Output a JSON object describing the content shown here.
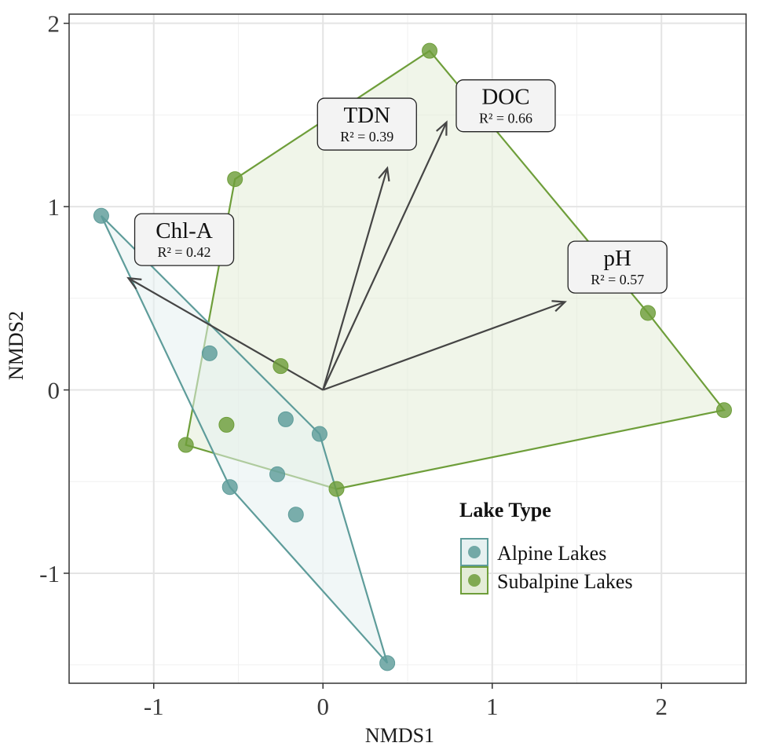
{
  "chart_data": {
    "type": "scatter",
    "xlabel": "NMDS1",
    "ylabel": "NMDS2",
    "xlim": [
      -1.5,
      2.5
    ],
    "ylim": [
      -1.6,
      2.05
    ],
    "x_ticks": [
      -1,
      0,
      1,
      2
    ],
    "x_tick_labels": [
      "-1",
      "0",
      "1",
      "2"
    ],
    "y_ticks": [
      -1,
      0,
      1,
      2
    ],
    "y_tick_labels": [
      "-1",
      "0",
      "1",
      "2"
    ],
    "grid": true,
    "legend": {
      "title": "Lake Type",
      "position": "bottom-right"
    },
    "series": [
      {
        "name": "Alpine Lakes",
        "color": "#5e9c9a",
        "fill": "#e6f1f1",
        "points": [
          {
            "x": -1.31,
            "y": 0.95
          },
          {
            "x": -0.67,
            "y": 0.2
          },
          {
            "x": -0.22,
            "y": -0.16
          },
          {
            "x": -0.02,
            "y": -0.24
          },
          {
            "x": -0.27,
            "y": -0.46
          },
          {
            "x": -0.55,
            "y": -0.53
          },
          {
            "x": -0.16,
            "y": -0.68
          },
          {
            "x": 0.38,
            "y": -1.49
          }
        ],
        "hull": [
          {
            "x": -1.31,
            "y": 0.95
          },
          {
            "x": -0.02,
            "y": -0.24
          },
          {
            "x": 0.38,
            "y": -1.49
          },
          {
            "x": -0.55,
            "y": -0.53
          }
        ]
      },
      {
        "name": "Subalpine Lakes",
        "color": "#6e9e3a",
        "fill": "#e4ecd7",
        "points": [
          {
            "x": 0.63,
            "y": 1.85
          },
          {
            "x": -0.52,
            "y": 1.15
          },
          {
            "x": -0.25,
            "y": 0.13
          },
          {
            "x": -0.57,
            "y": -0.19
          },
          {
            "x": -0.81,
            "y": -0.3
          },
          {
            "x": 0.08,
            "y": -0.54
          },
          {
            "x": 1.92,
            "y": 0.42
          },
          {
            "x": 2.37,
            "y": -0.11
          }
        ],
        "hull": [
          {
            "x": 0.63,
            "y": 1.85
          },
          {
            "x": 1.92,
            "y": 0.42
          },
          {
            "x": 2.37,
            "y": -0.11
          },
          {
            "x": 0.08,
            "y": -0.54
          },
          {
            "x": -0.81,
            "y": -0.3
          },
          {
            "x": -0.52,
            "y": 1.15
          }
        ]
      }
    ],
    "vectors": [
      {
        "name": "Chl-A",
        "r2": "R² = 0.42",
        "x": -1.15,
        "y": 0.61,
        "label_x": -0.82,
        "label_y": 0.82
      },
      {
        "name": "TDN",
        "r2": "R² = 0.39",
        "x": 0.38,
        "y": 1.21,
        "label_x": 0.26,
        "label_y": 1.45
      },
      {
        "name": "DOC",
        "r2": "R² = 0.66",
        "x": 0.73,
        "y": 1.46,
        "label_x": 1.08,
        "label_y": 1.55
      },
      {
        "name": "pH",
        "r2": "R² = 0.57",
        "x": 1.43,
        "y": 0.48,
        "label_x": 1.74,
        "label_y": 0.67
      }
    ],
    "vector_color": "#454545"
  }
}
